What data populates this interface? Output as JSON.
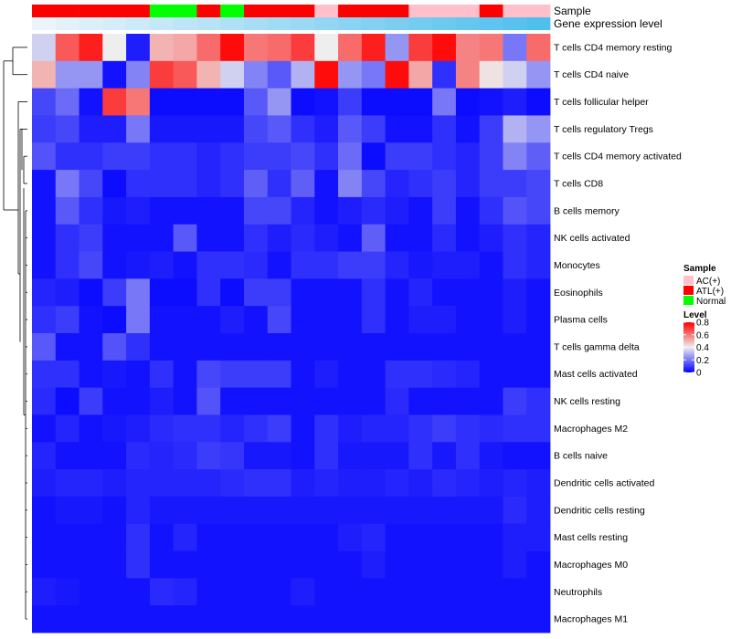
{
  "chart_data": {
    "type": "heatmap",
    "annotation_rows": [
      "Sample",
      "Gene expression level"
    ],
    "sample_groups": [
      "ATL(+)",
      "ATL(+)",
      "ATL(+)",
      "ATL(+)",
      "ATL(+)",
      "Normal",
      "Normal",
      "ATL(+)",
      "Normal",
      "ATL(+)",
      "ATL(+)",
      "ATL(+)",
      "AC(+)",
      "ATL(+)",
      "ATL(+)",
      "ATL(+)",
      "AC(+)",
      "AC(+)",
      "AC(+)",
      "ATL(+)",
      "AC(+)",
      "AC(+)"
    ],
    "gene_expression_level": [
      0.0,
      0.05,
      0.1,
      0.14,
      0.19,
      0.24,
      0.29,
      0.33,
      0.38,
      0.43,
      0.48,
      0.52,
      0.57,
      0.62,
      0.67,
      0.71,
      0.76,
      0.81,
      0.86,
      0.9,
      0.95,
      1.0
    ],
    "rows": [
      "T cells CD4 memory resting",
      "T cells CD4 naive",
      "T cells follicular helper",
      "T cells regulatory  Tregs",
      "T cells CD4 memory activated",
      "T cells CD8",
      "B cells memory",
      "NK cells activated",
      "Monocytes",
      "Eosinophils",
      "Plasma cells",
      "T cells gamma delta",
      "Mast cells activated",
      "NK cells resting",
      "Macrophages M2",
      "B cells naive",
      "Dendritic cells activated",
      "Dendritic cells resting",
      "Mast cells resting",
      "Macrophages M0",
      "Neutrophils",
      "Macrophages M1"
    ],
    "values": [
      [
        0.35,
        0.65,
        0.75,
        0.4,
        0.05,
        0.5,
        0.52,
        0.62,
        0.78,
        0.6,
        0.62,
        0.7,
        0.4,
        0.62,
        0.75,
        0.25,
        0.7,
        0.78,
        0.58,
        0.6,
        0.2,
        0.62
      ],
      [
        0.5,
        0.25,
        0.25,
        0.03,
        0.22,
        0.7,
        0.65,
        0.5,
        0.35,
        0.22,
        0.15,
        0.3,
        0.78,
        0.25,
        0.2,
        0.78,
        0.52,
        0.08,
        0.58,
        0.42,
        0.35,
        0.25
      ],
      [
        0.12,
        0.18,
        0.03,
        0.7,
        0.6,
        0.02,
        0.02,
        0.02,
        0.02,
        0.15,
        0.25,
        0.02,
        0.03,
        0.1,
        0.02,
        0.02,
        0.02,
        0.2,
        0.02,
        0.03,
        0.05,
        0.02
      ],
      [
        0.1,
        0.12,
        0.05,
        0.05,
        0.2,
        0.04,
        0.04,
        0.04,
        0.04,
        0.12,
        0.15,
        0.08,
        0.05,
        0.15,
        0.1,
        0.03,
        0.03,
        0.08,
        0.03,
        0.1,
        0.3,
        0.25
      ],
      [
        0.14,
        0.08,
        0.08,
        0.1,
        0.1,
        0.08,
        0.08,
        0.06,
        0.08,
        0.1,
        0.1,
        0.12,
        0.08,
        0.18,
        0.02,
        0.1,
        0.1,
        0.08,
        0.06,
        0.1,
        0.22,
        0.16
      ],
      [
        0.03,
        0.2,
        0.12,
        0.02,
        0.08,
        0.08,
        0.08,
        0.06,
        0.08,
        0.16,
        0.08,
        0.16,
        0.03,
        0.22,
        0.12,
        0.06,
        0.08,
        0.1,
        0.06,
        0.1,
        0.1,
        0.12
      ],
      [
        0.03,
        0.15,
        0.08,
        0.04,
        0.05,
        0.03,
        0.03,
        0.03,
        0.03,
        0.12,
        0.12,
        0.06,
        0.03,
        0.05,
        0.07,
        0.05,
        0.03,
        0.1,
        0.03,
        0.08,
        0.14,
        0.12
      ],
      [
        0.03,
        0.08,
        0.1,
        0.03,
        0.03,
        0.03,
        0.15,
        0.03,
        0.03,
        0.08,
        0.05,
        0.07,
        0.05,
        0.03,
        0.16,
        0.03,
        0.03,
        0.07,
        0.03,
        0.05,
        0.08,
        0.06
      ],
      [
        0.03,
        0.08,
        0.12,
        0.03,
        0.04,
        0.05,
        0.03,
        0.08,
        0.08,
        0.07,
        0.03,
        0.08,
        0.08,
        0.1,
        0.1,
        0.06,
        0.04,
        0.05,
        0.05,
        0.03,
        0.08,
        0.06
      ],
      [
        0.06,
        0.05,
        0.02,
        0.1,
        0.2,
        0.02,
        0.02,
        0.08,
        0.02,
        0.1,
        0.1,
        0.03,
        0.03,
        0.03,
        0.08,
        0.03,
        0.06,
        0.03,
        0.03,
        0.03,
        0.05,
        0.03
      ],
      [
        0.08,
        0.1,
        0.03,
        0.02,
        0.2,
        0.03,
        0.03,
        0.03,
        0.05,
        0.03,
        0.12,
        0.03,
        0.03,
        0.03,
        0.08,
        0.03,
        0.05,
        0.05,
        0.03,
        0.03,
        0.05,
        0.03
      ],
      [
        0.15,
        0.03,
        0.03,
        0.14,
        0.08,
        0.03,
        0.03,
        0.03,
        0.03,
        0.03,
        0.03,
        0.03,
        0.03,
        0.03,
        0.03,
        0.03,
        0.03,
        0.03,
        0.03,
        0.03,
        0.03,
        0.03
      ],
      [
        0.08,
        0.08,
        0.03,
        0.04,
        0.03,
        0.08,
        0.03,
        0.12,
        0.1,
        0.1,
        0.1,
        0.03,
        0.05,
        0.03,
        0.03,
        0.08,
        0.08,
        0.07,
        0.06,
        0.03,
        0.03,
        0.03
      ],
      [
        0.07,
        0.02,
        0.1,
        0.03,
        0.03,
        0.05,
        0.03,
        0.14,
        0.03,
        0.03,
        0.03,
        0.03,
        0.03,
        0.03,
        0.03,
        0.07,
        0.03,
        0.03,
        0.03,
        0.03,
        0.1,
        0.08
      ],
      [
        0.03,
        0.06,
        0.03,
        0.04,
        0.05,
        0.07,
        0.08,
        0.08,
        0.06,
        0.08,
        0.1,
        0.03,
        0.08,
        0.05,
        0.06,
        0.06,
        0.08,
        0.1,
        0.08,
        0.07,
        0.08,
        0.08
      ],
      [
        0.06,
        0.03,
        0.03,
        0.03,
        0.07,
        0.06,
        0.07,
        0.1,
        0.09,
        0.04,
        0.04,
        0.03,
        0.08,
        0.04,
        0.04,
        0.04,
        0.08,
        0.04,
        0.08,
        0.04,
        0.03,
        0.03
      ],
      [
        0.05,
        0.06,
        0.06,
        0.05,
        0.06,
        0.06,
        0.06,
        0.06,
        0.07,
        0.08,
        0.08,
        0.05,
        0.06,
        0.05,
        0.05,
        0.06,
        0.05,
        0.07,
        0.06,
        0.05,
        0.06,
        0.05
      ],
      [
        0.03,
        0.04,
        0.04,
        0.03,
        0.06,
        0.04,
        0.04,
        0.04,
        0.04,
        0.04,
        0.04,
        0.04,
        0.04,
        0.04,
        0.04,
        0.04,
        0.04,
        0.04,
        0.04,
        0.04,
        0.07,
        0.05
      ],
      [
        0.03,
        0.03,
        0.03,
        0.03,
        0.08,
        0.03,
        0.06,
        0.03,
        0.03,
        0.03,
        0.03,
        0.03,
        0.03,
        0.05,
        0.06,
        0.03,
        0.03,
        0.03,
        0.03,
        0.03,
        0.05,
        0.05
      ],
      [
        0.03,
        0.03,
        0.03,
        0.03,
        0.08,
        0.03,
        0.03,
        0.03,
        0.03,
        0.03,
        0.03,
        0.03,
        0.03,
        0.03,
        0.05,
        0.03,
        0.03,
        0.03,
        0.03,
        0.03,
        0.05,
        0.03
      ],
      [
        0.05,
        0.04,
        0.03,
        0.03,
        0.03,
        0.07,
        0.06,
        0.03,
        0.03,
        0.03,
        0.03,
        0.05,
        0.03,
        0.03,
        0.03,
        0.03,
        0.03,
        0.03,
        0.03,
        0.03,
        0.03,
        0.03
      ],
      [
        0.03,
        0.03,
        0.03,
        0.03,
        0.03,
        0.03,
        0.03,
        0.03,
        0.03,
        0.03,
        0.03,
        0.03,
        0.03,
        0.03,
        0.03,
        0.03,
        0.03,
        0.03,
        0.03,
        0.03,
        0.03,
        0.03
      ]
    ],
    "legend": {
      "sample_title": "Sample",
      "sample_entries": [
        {
          "label": "AC(+)",
          "color": "#ffc0cb"
        },
        {
          "label": "ATL(+)",
          "color": "#ff0000"
        },
        {
          "label": "Normal",
          "color": "#00ff00"
        }
      ],
      "level_title": "Level",
      "level_ticks": [
        "0.8",
        "0.6",
        "0.4",
        "0.2",
        "0"
      ],
      "level_range": [
        0,
        0.8
      ]
    },
    "color_scale": {
      "low": "#0000ff",
      "mid": "#eeeeee",
      "high": "#ff0000",
      "mid_value": 0.4,
      "max_value": 0.8
    },
    "gene_color_scale": {
      "low": "#ebf4fa",
      "high": "#4fbfee"
    }
  }
}
